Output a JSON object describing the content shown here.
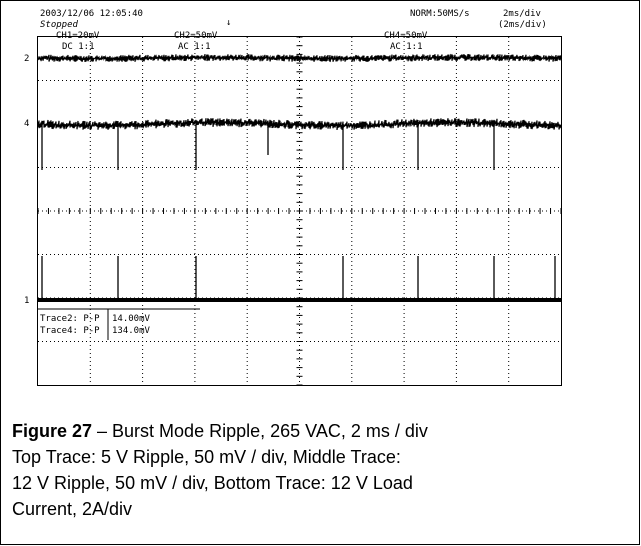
{
  "scope": {
    "timestamp": "2003/12/06 12:05:40",
    "status": "Stopped",
    "sampling": "NORM:50MS/s",
    "timebase": "2ms/div",
    "timebase_zoom": "(2ms/div)",
    "channels": [
      {
        "scale": "CH1=20mV",
        "coupling": "DC 1:1"
      },
      {
        "scale": "CH2=50mV",
        "coupling": "AC 1:1"
      },
      {
        "scale": "CH4=50mV",
        "coupling": "AC 1:1"
      }
    ],
    "markers": [
      "2",
      "4",
      "1"
    ],
    "measurements": [
      {
        "name": "Trace2: P-P",
        "value": "14.00mV"
      },
      {
        "name": "Trace4: P-P",
        "value": "134.0mV"
      }
    ]
  },
  "caption": {
    "label": "Figure 27",
    "lines": [
      " – Burst Mode Ripple, 265 VAC, 2 ms / div",
      "Top Trace: 5 V Ripple, 50 mV / div, Middle Trace:",
      "12 V Ripple, 50 mV / div, Bottom Trace: 12 V Load",
      "Current, 2A/div"
    ]
  }
}
